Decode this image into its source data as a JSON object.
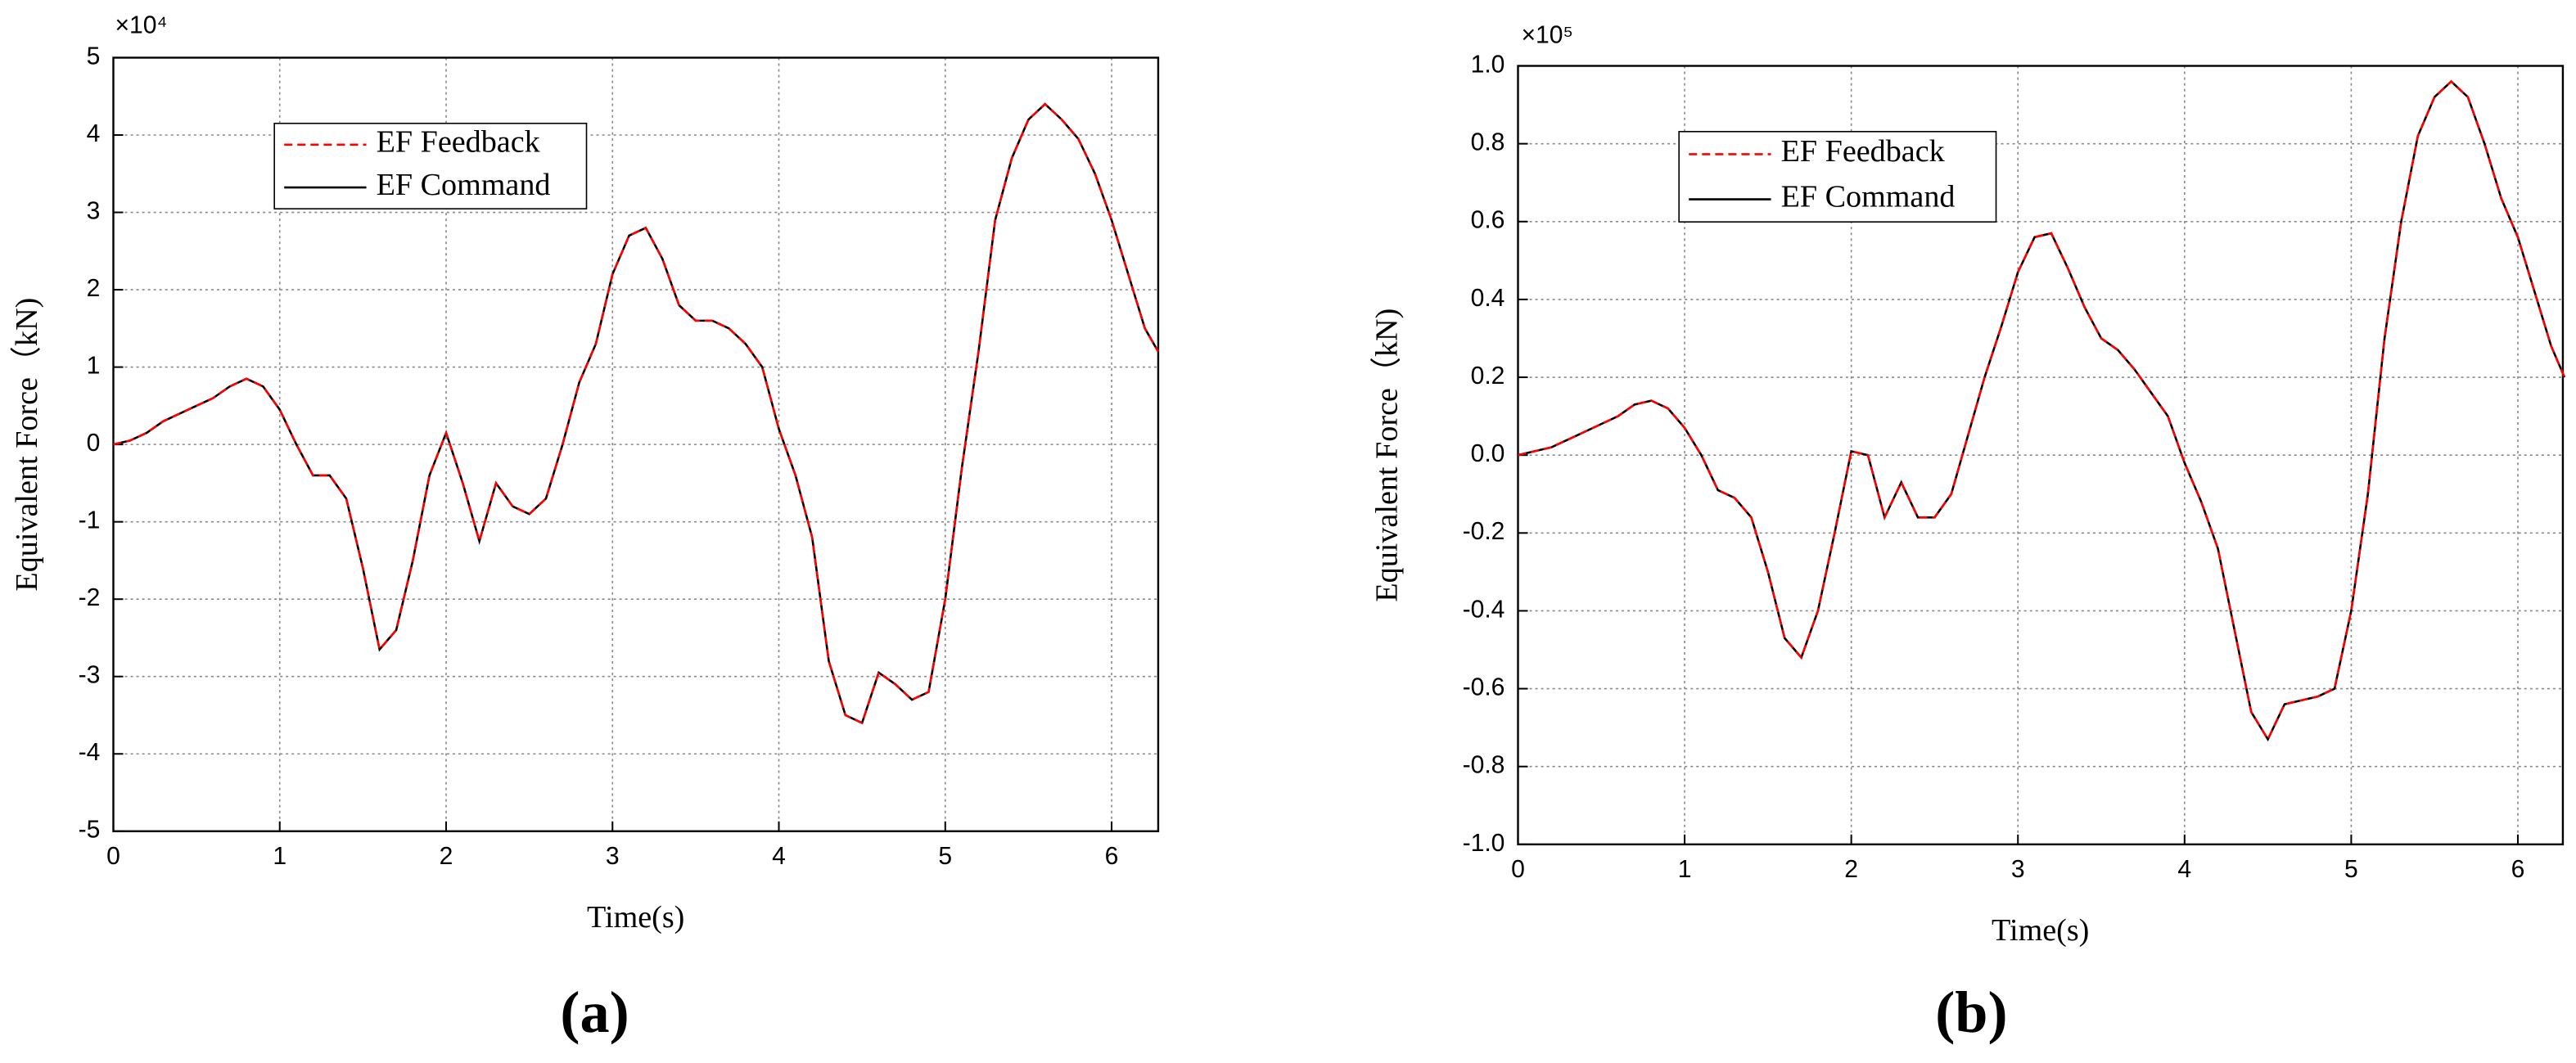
{
  "chart_data": [
    {
      "type": "line",
      "panel_label": "(a)",
      "y_multiplier": "×10⁴",
      "x_label": "Time(s)",
      "y_label": "Equivalent Force（kN)",
      "x": [
        0,
        0.1,
        0.2,
        0.3,
        0.4,
        0.5,
        0.6,
        0.7,
        0.8,
        0.9,
        1.0,
        1.1,
        1.2,
        1.3,
        1.4,
        1.5,
        1.6,
        1.7,
        1.8,
        1.9,
        2.0,
        2.1,
        2.2,
        2.3,
        2.4,
        2.5,
        2.6,
        2.7,
        2.8,
        2.9,
        3.0,
        3.1,
        3.2,
        3.3,
        3.4,
        3.5,
        3.6,
        3.7,
        3.8,
        3.9,
        4.0,
        4.1,
        4.2,
        4.3,
        4.4,
        4.5,
        4.6,
        4.7,
        4.8,
        4.9,
        5.0,
        5.1,
        5.2,
        5.3,
        5.4,
        5.5,
        5.6,
        5.7,
        5.8,
        5.9,
        6.0,
        6.1,
        6.2,
        6.28
      ],
      "series": [
        {
          "name": "EF Feedback",
          "color": "#ff0000",
          "dashed": true,
          "values": [
            0,
            0.05,
            0.15,
            0.3,
            0.4,
            0.5,
            0.6,
            0.75,
            0.85,
            0.75,
            0.45,
            0,
            -0.4,
            -0.4,
            -0.7,
            -1.6,
            -2.65,
            -2.4,
            -1.5,
            -0.4,
            0.15,
            -0.5,
            -1.25,
            -0.5,
            -0.8,
            -0.9,
            -0.7,
            0,
            0.8,
            1.3,
            2.2,
            2.7,
            2.8,
            2.4,
            1.8,
            1.6,
            1.6,
            1.5,
            1.3,
            1.0,
            0.2,
            -0.4,
            -1.2,
            -2.8,
            -3.5,
            -3.6,
            -2.95,
            -3.1,
            -3.3,
            -3.2,
            -2.0,
            -0.3,
            1.2,
            2.9,
            3.7,
            4.2,
            4.4,
            4.2,
            3.95,
            3.5,
            2.9,
            2.2,
            1.5,
            1.2
          ]
        },
        {
          "name": "EF Command",
          "color": "#000000",
          "dashed": false,
          "values": [
            0,
            0.05,
            0.15,
            0.3,
            0.4,
            0.5,
            0.6,
            0.75,
            0.85,
            0.75,
            0.45,
            0,
            -0.4,
            -0.4,
            -0.7,
            -1.6,
            -2.65,
            -2.4,
            -1.5,
            -0.4,
            0.15,
            -0.5,
            -1.25,
            -0.5,
            -0.8,
            -0.9,
            -0.7,
            0,
            0.8,
            1.3,
            2.2,
            2.7,
            2.8,
            2.4,
            1.8,
            1.6,
            1.6,
            1.5,
            1.3,
            1.0,
            0.2,
            -0.4,
            -1.2,
            -2.8,
            -3.5,
            -3.6,
            -2.95,
            -3.1,
            -3.3,
            -3.2,
            -2.0,
            -0.3,
            1.2,
            2.9,
            3.7,
            4.2,
            4.4,
            4.2,
            3.95,
            3.5,
            2.9,
            2.2,
            1.5,
            1.2
          ]
        }
      ],
      "xlim": [
        0,
        6.28
      ],
      "xticks": [
        0,
        1,
        2,
        3,
        4,
        5,
        6
      ],
      "ylim": [
        -5,
        5
      ],
      "yticks": [
        -5,
        -4,
        -3,
        -2,
        -1,
        0,
        1,
        2,
        3,
        4,
        5
      ],
      "grid": true
    },
    {
      "type": "line",
      "panel_label": "(b)",
      "y_multiplier": "×10⁵",
      "x_label": "Time(s)",
      "y_label": "Equivalent Force（kN)",
      "x": [
        0,
        0.1,
        0.2,
        0.3,
        0.4,
        0.5,
        0.6,
        0.7,
        0.8,
        0.9,
        1.0,
        1.1,
        1.2,
        1.3,
        1.4,
        1.5,
        1.6,
        1.7,
        1.8,
        1.9,
        2.0,
        2.1,
        2.2,
        2.3,
        2.4,
        2.5,
        2.6,
        2.7,
        2.8,
        2.9,
        3.0,
        3.1,
        3.2,
        3.3,
        3.4,
        3.5,
        3.6,
        3.7,
        3.8,
        3.9,
        4.0,
        4.1,
        4.2,
        4.3,
        4.4,
        4.5,
        4.6,
        4.7,
        4.8,
        4.9,
        5.0,
        5.1,
        5.2,
        5.3,
        5.4,
        5.5,
        5.6,
        5.7,
        5.8,
        5.9,
        6.0,
        6.1,
        6.2,
        6.28
      ],
      "series": [
        {
          "name": "EF Feedback",
          "color": "#ff0000",
          "dashed": true,
          "values": [
            0,
            0.01,
            0.02,
            0.04,
            0.06,
            0.08,
            0.1,
            0.13,
            0.14,
            0.12,
            0.07,
            0,
            -0.09,
            -0.11,
            -0.16,
            -0.3,
            -0.47,
            -0.52,
            -0.4,
            -0.2,
            0.01,
            0,
            -0.16,
            -0.07,
            -0.16,
            -0.16,
            -0.1,
            0.05,
            0.2,
            0.33,
            0.47,
            0.56,
            0.57,
            0.48,
            0.38,
            0.3,
            0.27,
            0.22,
            0.16,
            0.1,
            -0.02,
            -0.12,
            -0.24,
            -0.45,
            -0.66,
            -0.73,
            -0.64,
            -0.63,
            -0.62,
            -0.6,
            -0.4,
            -0.1,
            0.3,
            0.6,
            0.82,
            0.92,
            0.96,
            0.92,
            0.8,
            0.66,
            0.56,
            0.42,
            0.28,
            0.2
          ]
        },
        {
          "name": "EF Command",
          "color": "#000000",
          "dashed": false,
          "values": [
            0,
            0.01,
            0.02,
            0.04,
            0.06,
            0.08,
            0.1,
            0.13,
            0.14,
            0.12,
            0.07,
            0,
            -0.09,
            -0.11,
            -0.16,
            -0.3,
            -0.47,
            -0.52,
            -0.4,
            -0.2,
            0.01,
            0,
            -0.16,
            -0.07,
            -0.16,
            -0.16,
            -0.1,
            0.05,
            0.2,
            0.33,
            0.47,
            0.56,
            0.57,
            0.48,
            0.38,
            0.3,
            0.27,
            0.22,
            0.16,
            0.1,
            -0.02,
            -0.12,
            -0.24,
            -0.45,
            -0.66,
            -0.73,
            -0.64,
            -0.63,
            -0.62,
            -0.6,
            -0.4,
            -0.1,
            0.3,
            0.6,
            0.82,
            0.92,
            0.96,
            0.92,
            0.8,
            0.66,
            0.56,
            0.42,
            0.28,
            0.2
          ]
        }
      ],
      "xlim": [
        0,
        6.27
      ],
      "xticks": [
        0,
        1,
        2,
        3,
        4,
        5,
        6
      ],
      "ylim": [
        -1,
        1
      ],
      "yticks": [
        {
          "value": -1,
          "label": "-1.0"
        },
        -0.8,
        -0.6,
        -0.4,
        -0.2,
        {
          "value": 0,
          "label": "0.0"
        },
        0.2,
        0.4,
        0.6,
        0.8,
        {
          "value": 1,
          "label": "1.0"
        }
      ],
      "grid": true
    }
  ]
}
